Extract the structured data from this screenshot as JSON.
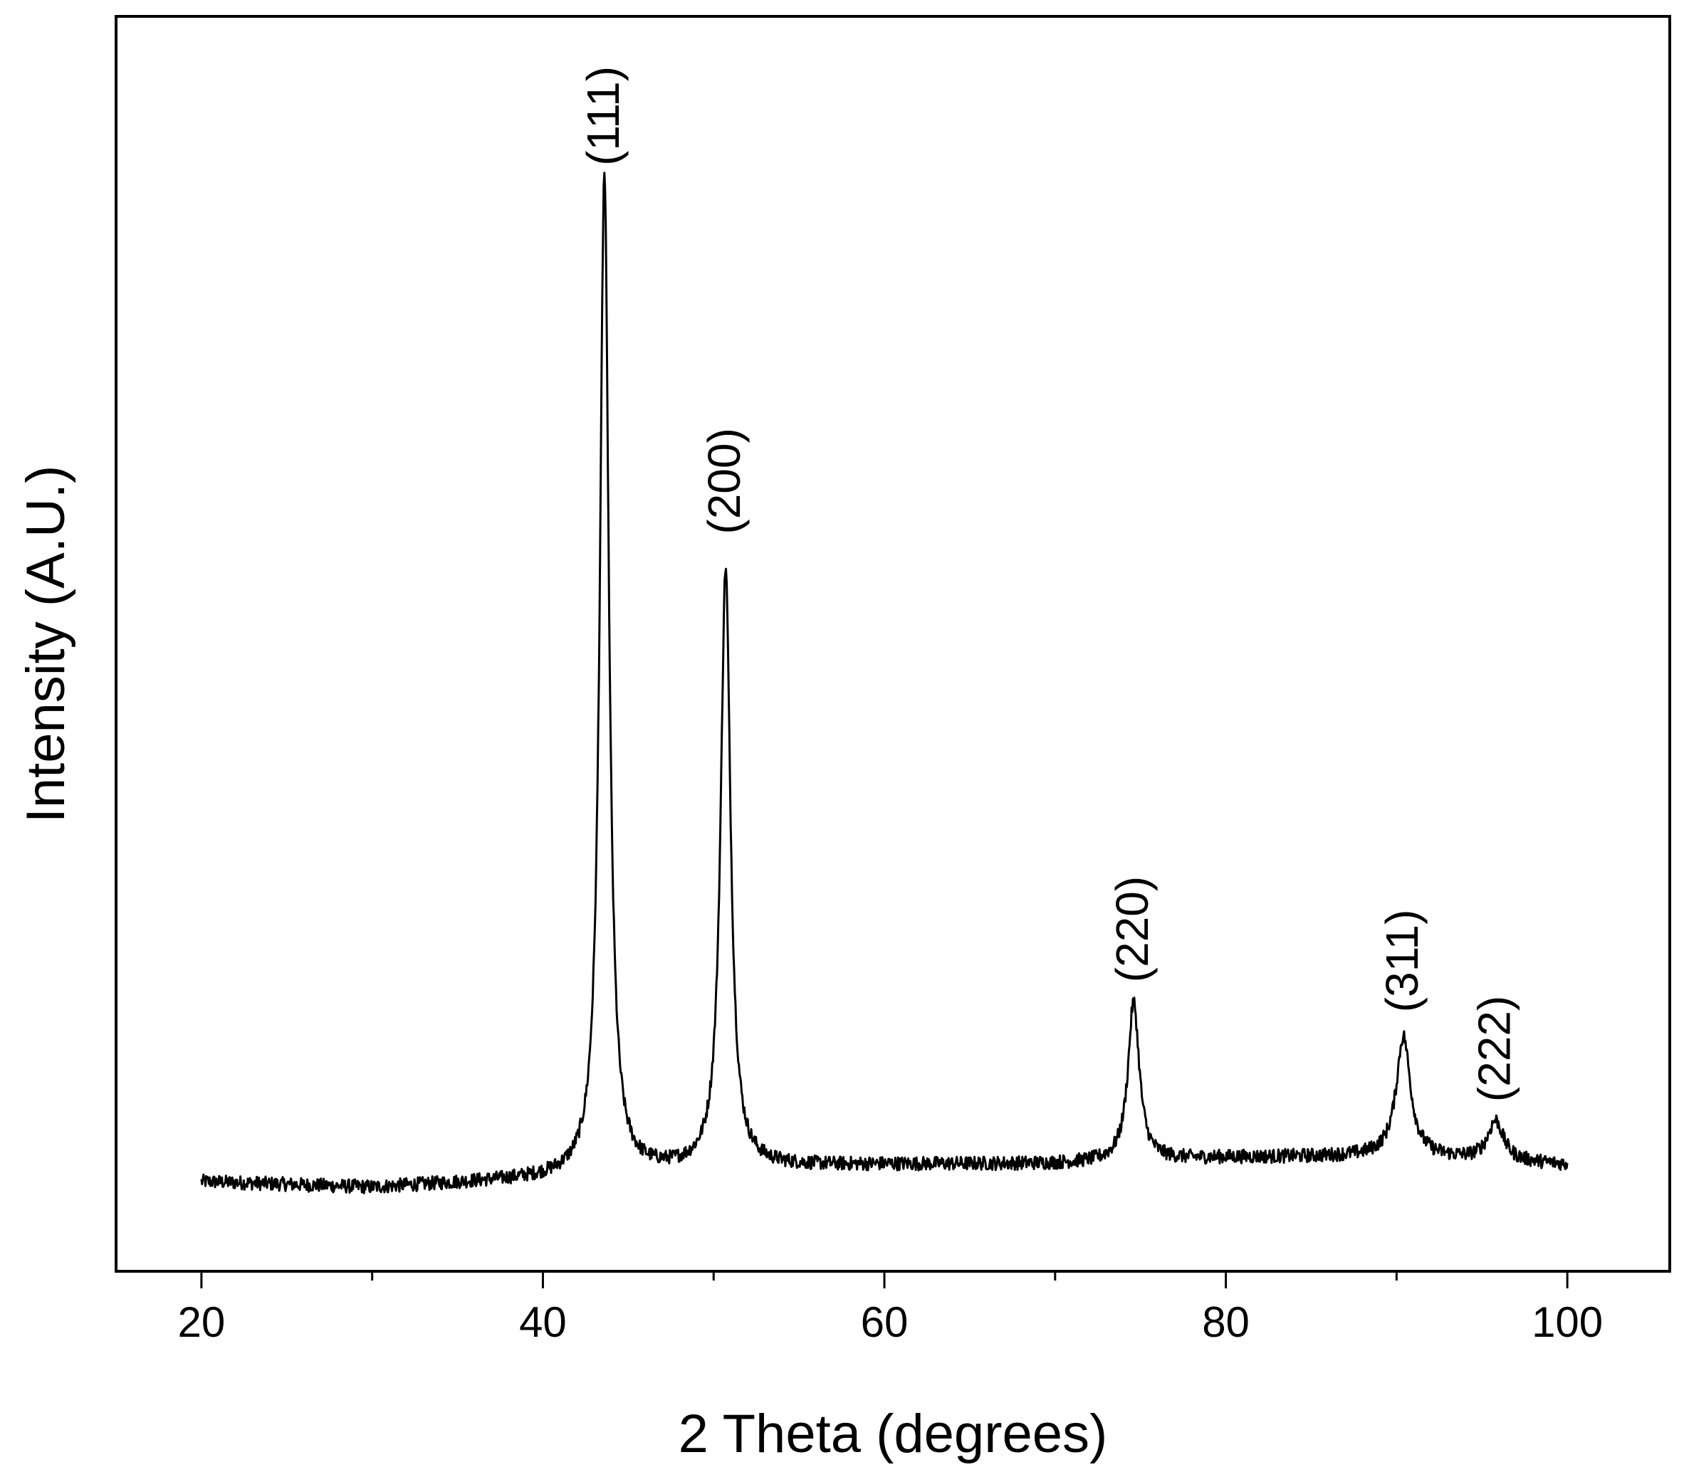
{
  "chart_data": {
    "type": "line",
    "title": "",
    "xlabel": "2 Theta (degrees)",
    "ylabel": "Intensity (A.U.)",
    "xlim": [
      15,
      106
    ],
    "ylim": [
      -8,
      118
    ],
    "x_ticks": [
      20,
      40,
      60,
      80,
      100
    ],
    "x_tick_labels": [
      "20",
      "40",
      "60",
      "80",
      "100"
    ],
    "x_minor_ticks": [
      30,
      50,
      70,
      90
    ],
    "y_tick_labels": [],
    "grid": false,
    "legend": "none",
    "line_color": "#000000",
    "baseline": {
      "x": [
        20,
        30,
        40,
        50,
        60,
        70,
        80,
        90,
        100
      ],
      "y": [
        1.0,
        0.4,
        1.3,
        2.4,
        2.7,
        2.8,
        3.4,
        3.6,
        2.7
      ]
    },
    "noise_amplitude": 0.7,
    "x_step": 0.04,
    "peaks": [
      {
        "label": "(111)",
        "x": 43.6,
        "height": 100.5,
        "width": 0.32,
        "label_y": 103.0
      },
      {
        "label": "(200)",
        "x": 50.7,
        "height": 60.0,
        "width": 0.35,
        "label_y": 66.0
      },
      {
        "label": "(220)",
        "x": 74.6,
        "height": 16.0,
        "width": 0.4,
        "label_y": 21.0
      },
      {
        "label": "(311)",
        "x": 90.4,
        "height": 12.0,
        "width": 0.5,
        "label_y": 18.0
      },
      {
        "label": "(222)",
        "x": 95.8,
        "height": 4.0,
        "width": 0.55,
        "label_y": 9.0
      }
    ]
  }
}
